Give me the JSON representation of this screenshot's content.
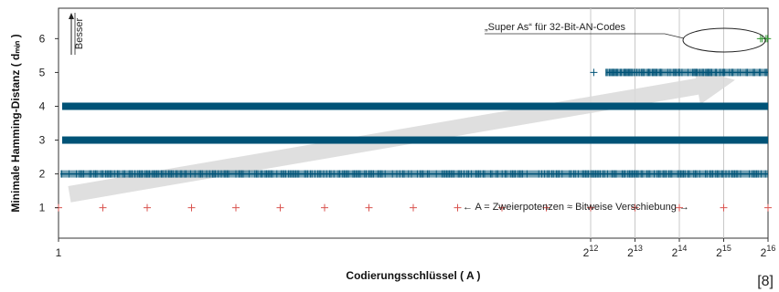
{
  "chart_data": {
    "type": "scatter",
    "title": "",
    "xlabel": "Codierungsschlüssel ( A )",
    "ylabel": "Minimale Hamming-Distanz ( dₘᵢₙ )",
    "x_scale": "log2",
    "xlim": [
      1,
      65536
    ],
    "ylim": [
      0.1,
      6.9
    ],
    "grid": "vertical",
    "x_ticks": [
      {
        "value": 1,
        "base": "1",
        "exp": ""
      },
      {
        "value": 4096,
        "base": "2",
        "exp": "12"
      },
      {
        "value": 8192,
        "base": "2",
        "exp": "13"
      },
      {
        "value": 16384,
        "base": "2",
        "exp": "14"
      },
      {
        "value": 32768,
        "base": "2",
        "exp": "15"
      },
      {
        "value": 65536,
        "base": "2",
        "exp": "16"
      }
    ],
    "y_ticks": [
      1,
      2,
      3,
      4,
      5,
      6
    ],
    "series": [
      {
        "dmin": 1,
        "color": "#d9534f",
        "marker": "plus",
        "points": [
          1,
          2,
          4,
          8,
          16,
          32,
          64,
          128,
          256,
          512,
          1024,
          2048,
          4096,
          8192,
          16384,
          32768,
          65536
        ],
        "pattern": "powers-of-two"
      },
      {
        "dmin": 2,
        "color": "#005377",
        "marker": "plus",
        "dense_range": [
          1,
          65536
        ],
        "pattern": "dense"
      },
      {
        "dmin": 3,
        "color": "#005377",
        "marker": "plus",
        "dense_range": [
          1,
          65536
        ],
        "pattern": "solid"
      },
      {
        "dmin": 4,
        "color": "#005377",
        "marker": "plus",
        "dense_range": [
          1,
          65536
        ],
        "pattern": "solid"
      },
      {
        "dmin": 5,
        "color": "#005377",
        "marker": "plus",
        "points": [
          4300
        ],
        "dense_range": [
          5200,
          65536
        ],
        "pattern": "dense"
      },
      {
        "dmin": 6,
        "color": "#3a9c3a",
        "marker": "plus",
        "points": [
          58300,
          59800,
          63500,
          64900
        ],
        "pattern": "sparse"
      }
    ],
    "annotations": {
      "better": "Besser",
      "super_as": "„Super As“ für 32-Bit-AN-Codes",
      "powers": "← A = Zweierpotenzen ≈ Bitweise Verschiebung →"
    },
    "reference": "[8]"
  },
  "colors": {
    "accent": "#005377",
    "power_of_two": "#d9534f",
    "super_a": "#3a9c3a",
    "trend_arrow": "#d9d9d9"
  }
}
